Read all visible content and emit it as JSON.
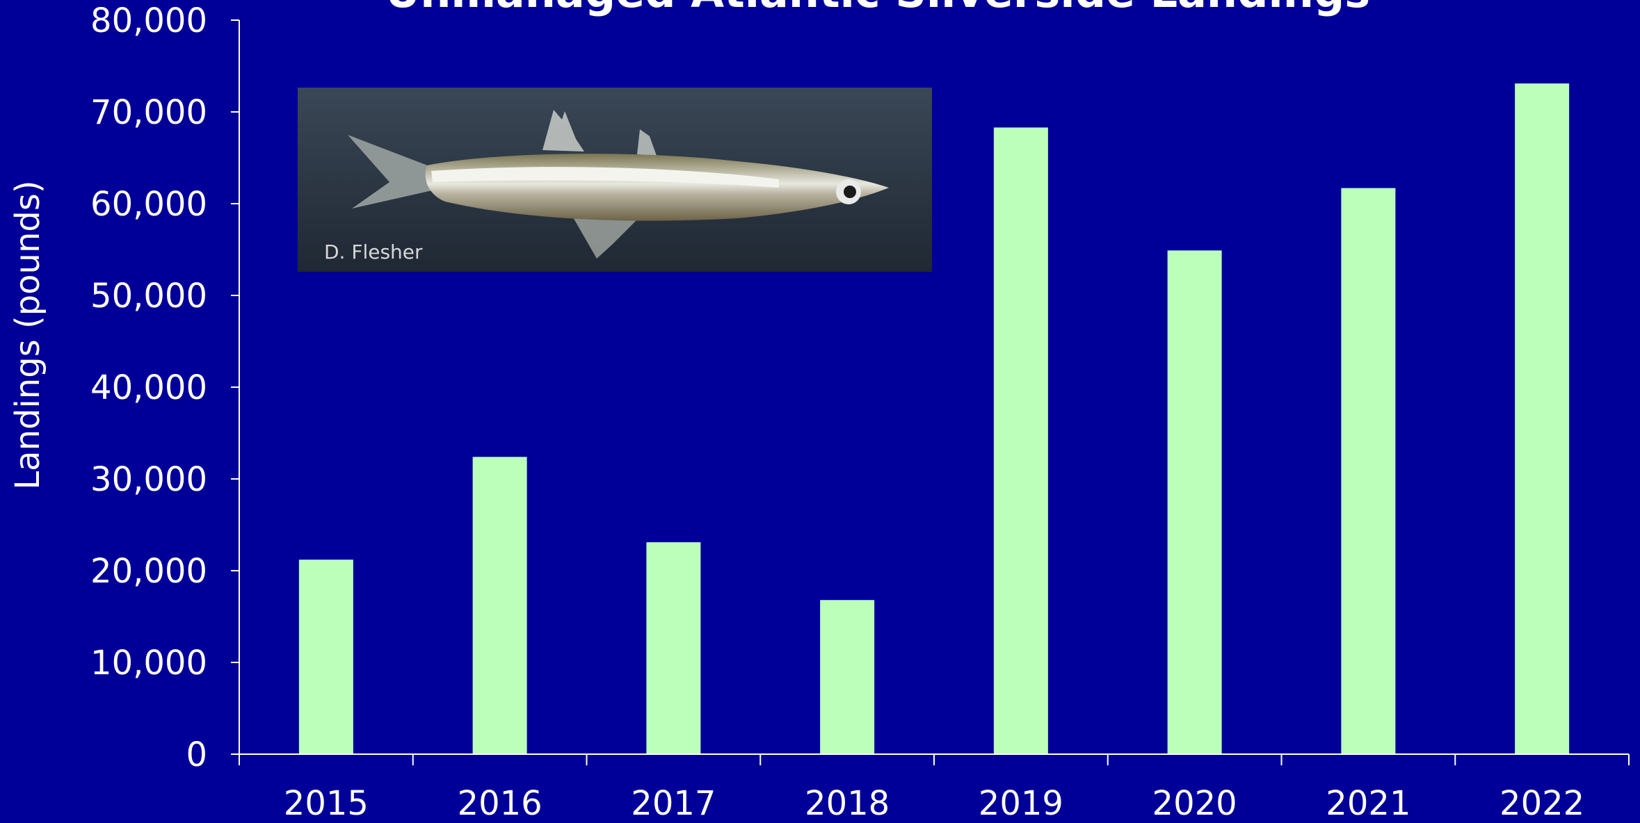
{
  "colors": {
    "background": "#000099",
    "bar": "#bbffbb",
    "axis": "#ffffff",
    "text": "#ffffff"
  },
  "photo": {
    "subject": "Atlantic silverside fish photograph",
    "credit": "D. Flesher"
  },
  "chart_data": {
    "type": "bar",
    "title": "Unmanaged Atlantic Silverside Landings",
    "ylabel": "Landings (pounds)",
    "xlabel": "",
    "categories": [
      "2015",
      "2016",
      "2017",
      "2018",
      "2019",
      "2020",
      "2021",
      "2022"
    ],
    "values": [
      21200,
      32400,
      23100,
      16800,
      68300,
      54900,
      61700,
      73100
    ],
    "ylim": [
      0,
      80000
    ],
    "yticks": [
      0,
      10000,
      20000,
      30000,
      40000,
      50000,
      60000,
      70000,
      80000
    ],
    "ytick_labels": [
      "0",
      "10,000",
      "20,000",
      "30,000",
      "40,000",
      "50,000",
      "60,000",
      "70,000",
      "80,000"
    ],
    "grid": false,
    "legend": "none"
  }
}
